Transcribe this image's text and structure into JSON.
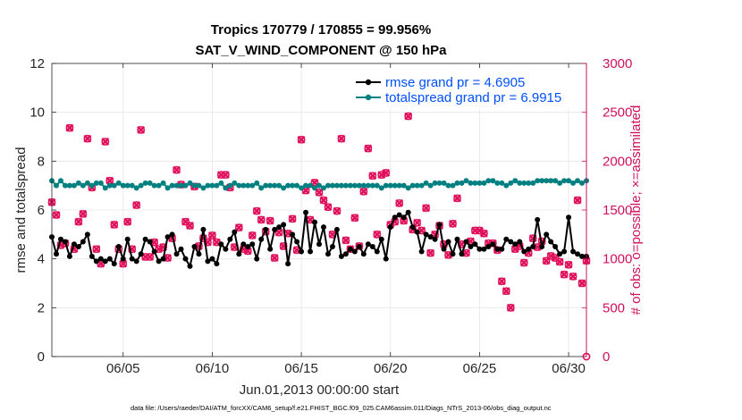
{
  "chart_data": {
    "type": "line",
    "title": "Tropics 170779 / 170855 = 99.956%",
    "subtitle": "SAT_V_WIND_COMPONENT @ 150 hPa",
    "xlabel": "Jun.01,2013 00:00:00 start",
    "ylabel_left": "rmse and totalspread",
    "ylabel_right": "# of obs: o=possible; ×=assimilated",
    "xlim": [
      1,
      31
    ],
    "ylim_left": [
      0,
      12
    ],
    "ylim_right": [
      0,
      3000
    ],
    "x_ticks": [
      5,
      10,
      15,
      20,
      25,
      30
    ],
    "x_tick_labels": [
      "06/05",
      "06/10",
      "06/15",
      "06/20",
      "06/25",
      "06/30"
    ],
    "y_ticks_left": [
      0,
      2,
      4,
      6,
      8,
      10,
      12
    ],
    "y_tick_labels_left": [
      "0",
      "2",
      "4",
      "6",
      "8",
      "10",
      "12"
    ],
    "y_ticks_right": [
      0,
      500,
      1000,
      1500,
      2000,
      2500,
      3000
    ],
    "y_tick_labels_right": [
      "0",
      "500",
      "1000",
      "1500",
      "2000",
      "2500",
      "3000"
    ],
    "grid": true,
    "legend_position": "top-right",
    "series": [
      {
        "name": "rmse grand pr = 4.6905",
        "axis": "left",
        "color": "#000000",
        "marker": "circle",
        "x": [
          1.0,
          1.25,
          1.5,
          1.75,
          2.0,
          2.25,
          2.5,
          2.75,
          3.0,
          3.25,
          3.5,
          3.75,
          4.0,
          4.25,
          4.5,
          4.75,
          5.0,
          5.25,
          5.5,
          5.75,
          6.0,
          6.25,
          6.5,
          6.75,
          7.0,
          7.25,
          7.5,
          7.75,
          8.0,
          8.25,
          8.5,
          8.75,
          9.0,
          9.25,
          9.5,
          9.75,
          10.0,
          10.25,
          10.5,
          10.75,
          11.0,
          11.25,
          11.5,
          11.75,
          12.0,
          12.25,
          12.5,
          12.75,
          13.0,
          13.25,
          13.5,
          13.75,
          14.0,
          14.25,
          14.5,
          14.75,
          15.0,
          15.25,
          15.5,
          15.75,
          16.0,
          16.25,
          16.5,
          16.75,
          17.0,
          17.25,
          17.5,
          17.75,
          18.0,
          18.25,
          18.5,
          18.75,
          19.0,
          19.25,
          19.5,
          19.75,
          20.0,
          20.25,
          20.5,
          20.75,
          21.0,
          21.25,
          21.5,
          21.75,
          22.0,
          22.25,
          22.5,
          22.75,
          23.0,
          23.25,
          23.5,
          23.75,
          24.0,
          24.25,
          24.5,
          24.75,
          25.0,
          25.25,
          25.5,
          25.75,
          26.0,
          26.25,
          26.5,
          26.75,
          27.0,
          27.25,
          27.5,
          27.75,
          28.0,
          28.25,
          28.5,
          28.75,
          29.0,
          29.25,
          29.5,
          29.75,
          30.0,
          30.25,
          30.5,
          30.75,
          31.0
        ],
        "values": [
          4.9,
          4.2,
          4.8,
          4.7,
          4.1,
          4.6,
          4.5,
          4.7,
          5.0,
          4.1,
          3.9,
          4.0,
          3.9,
          4.0,
          3.8,
          4.5,
          4.0,
          4.8,
          4.0,
          3.9,
          4.2,
          4.8,
          4.7,
          4.3,
          3.9,
          4.0,
          4.9,
          5.0,
          4.2,
          4.4,
          4.0,
          3.7,
          4.5,
          4.2,
          5.2,
          3.9,
          4.0,
          3.8,
          4.6,
          4.4,
          4.8,
          5.1,
          4.2,
          4.6,
          4.5,
          4.6,
          4.0,
          4.8,
          5.2,
          4.4,
          5.2,
          5.3,
          5.4,
          3.8,
          5.0,
          4.7,
          4.3,
          5.9,
          4.3,
          5.5,
          4.6,
          5.3,
          4.2,
          4.5,
          5.2,
          4.1,
          4.2,
          4.4,
          4.3,
          4.5,
          4.2,
          4.6,
          4.5,
          4.3,
          4.8,
          4.0,
          5.3,
          5.7,
          5.8,
          5.7,
          5.9,
          5.3,
          5.1,
          4.3,
          5.0,
          4.9,
          4.8,
          5.4,
          4.4,
          4.7,
          4.2,
          4.8,
          4.2,
          4.7,
          4.5,
          4.6,
          4.4,
          4.4,
          4.5,
          4.6,
          4.4,
          4.4,
          4.8,
          4.7,
          4.6,
          4.7,
          4.3,
          4.4,
          4.5,
          5.6,
          4.5,
          5.0,
          4.7,
          4.5,
          4.2,
          4.3,
          5.7,
          4.3,
          4.2,
          4.1,
          4.1
        ]
      },
      {
        "name": "totalspread grand pr = 6.9915",
        "axis": "left",
        "color": "#008080",
        "marker": "circle",
        "x": [
          1.0,
          1.25,
          1.5,
          1.75,
          2.0,
          2.25,
          2.5,
          2.75,
          3.0,
          3.25,
          3.5,
          3.75,
          4.0,
          4.25,
          4.5,
          4.75,
          5.0,
          5.25,
          5.5,
          5.75,
          6.0,
          6.25,
          6.5,
          6.75,
          7.0,
          7.25,
          7.5,
          7.75,
          8.0,
          8.25,
          8.5,
          8.75,
          9.0,
          9.25,
          9.5,
          9.75,
          10.0,
          10.25,
          10.5,
          10.75,
          11.0,
          11.25,
          11.5,
          11.75,
          12.0,
          12.25,
          12.5,
          12.75,
          13.0,
          13.25,
          13.5,
          13.75,
          14.0,
          14.25,
          14.5,
          14.75,
          15.0,
          15.25,
          15.5,
          15.75,
          16.0,
          16.25,
          16.5,
          16.75,
          17.0,
          17.25,
          17.5,
          17.75,
          18.0,
          18.25,
          18.5,
          18.75,
          19.0,
          19.25,
          19.5,
          19.75,
          20.0,
          20.25,
          20.5,
          20.75,
          21.0,
          21.25,
          21.5,
          21.75,
          22.0,
          22.25,
          22.5,
          22.75,
          23.0,
          23.25,
          23.5,
          23.75,
          24.0,
          24.25,
          24.5,
          24.75,
          25.0,
          25.25,
          25.5,
          25.75,
          26.0,
          26.25,
          26.5,
          26.75,
          27.0,
          27.25,
          27.5,
          27.75,
          28.0,
          28.25,
          28.5,
          28.75,
          29.0,
          29.25,
          29.5,
          29.75,
          30.0,
          30.25,
          30.5,
          30.75,
          31.0
        ],
        "values": [
          7.2,
          7.0,
          7.2,
          7.0,
          7.0,
          7.0,
          7.1,
          7.0,
          7.1,
          7.0,
          7.1,
          7.1,
          6.9,
          7.0,
          7.0,
          7.1,
          7.0,
          7.0,
          7.0,
          6.9,
          7.0,
          7.1,
          7.1,
          7.0,
          7.0,
          7.1,
          6.9,
          7.0,
          7.0,
          7.0,
          7.0,
          7.1,
          7.0,
          7.0,
          6.9,
          7.0,
          7.0,
          7.0,
          7.1,
          6.9,
          7.0,
          7.1,
          7.0,
          7.0,
          7.0,
          7.0,
          7.1,
          6.9,
          7.0,
          7.0,
          7.0,
          7.0,
          6.9,
          7.0,
          7.0,
          7.0,
          6.9,
          7.0,
          7.0,
          6.9,
          7.0,
          6.9,
          7.0,
          7.0,
          7.0,
          7.0,
          7.0,
          7.0,
          7.0,
          7.0,
          7.0,
          7.0,
          7.0,
          7.0,
          6.9,
          7.0,
          7.0,
          7.0,
          7.0,
          7.0,
          6.9,
          7.0,
          7.0,
          7.0,
          7.1,
          7.0,
          7.1,
          7.1,
          7.1,
          7.0,
          7.0,
          7.1,
          7.1,
          7.2,
          7.1,
          7.1,
          7.1,
          7.1,
          7.2,
          7.2,
          7.1,
          7.1,
          7.0,
          7.1,
          7.2,
          7.1,
          7.1,
          7.1,
          7.1,
          7.2,
          7.2,
          7.2,
          7.2,
          7.2,
          7.1,
          7.2,
          7.2,
          7.1,
          7.2,
          7.1,
          7.2
        ]
      },
      {
        "name": "obs possible / assimilated",
        "axis": "right",
        "color": "#e0105c",
        "marker": "x",
        "x": [
          1.0,
          1.25,
          1.5,
          1.75,
          2.0,
          2.25,
          2.5,
          2.75,
          3.0,
          3.25,
          3.5,
          3.75,
          4.0,
          4.25,
          4.5,
          4.75,
          5.0,
          5.25,
          5.5,
          5.75,
          6.0,
          6.25,
          6.5,
          6.75,
          7.0,
          7.25,
          7.5,
          7.75,
          8.0,
          8.25,
          8.5,
          8.75,
          9.0,
          9.25,
          9.5,
          9.75,
          10.0,
          10.25,
          10.5,
          10.75,
          11.0,
          11.25,
          11.5,
          11.75,
          12.0,
          12.25,
          12.5,
          12.75,
          13.0,
          13.25,
          13.5,
          13.75,
          14.0,
          14.25,
          14.5,
          14.75,
          15.0,
          15.25,
          15.5,
          15.75,
          16.0,
          16.25,
          16.5,
          16.75,
          17.0,
          17.25,
          17.5,
          17.75,
          18.0,
          18.25,
          18.5,
          18.75,
          19.0,
          19.25,
          19.5,
          19.75,
          20.0,
          20.25,
          20.5,
          20.75,
          21.0,
          21.25,
          21.5,
          21.75,
          22.0,
          22.25,
          22.5,
          22.75,
          23.0,
          23.25,
          23.5,
          23.75,
          24.0,
          24.25,
          24.5,
          24.75,
          25.0,
          25.25,
          25.5,
          25.75,
          26.0,
          26.25,
          26.5,
          26.75,
          27.0,
          27.25,
          27.5,
          27.75,
          28.0,
          28.25,
          28.5,
          28.75,
          29.0,
          29.25,
          29.5,
          29.75,
          30.0,
          30.25,
          30.5,
          30.75,
          31.0
        ],
        "values": [
          1580,
          1450,
          1140,
          1160,
          2340,
          1100,
          1380,
          1460,
          2230,
          1730,
          1100,
          950,
          2200,
          1800,
          1350,
          1100,
          950,
          1380,
          1100,
          1550,
          2320,
          1020,
          1020,
          1170,
          1100,
          1120,
          1010,
          1210,
          1910,
          1760,
          1380,
          1340,
          1740,
          1130,
          1210,
          1170,
          1240,
          1170,
          1860,
          1860,
          1730,
          1120,
          1320,
          1100,
          1080,
          1240,
          1490,
          1400,
          1280,
          1390,
          1010,
          1270,
          1130,
          1260,
          1410,
          1090,
          2220,
          1700,
          1400,
          1780,
          1680,
          1600,
          1530,
          1250,
          1490,
          2230,
          1190,
          1100,
          1420,
          1130,
          1690,
          2130,
          1850,
          1250,
          1860,
          1880,
          1350,
          1380,
          1570,
          1390,
          2460,
          1300,
          1370,
          1290,
          1520,
          1060,
          1250,
          1340,
          1150,
          1040,
          1360,
          1620,
          1150,
          1060,
          1180,
          1290,
          1290,
          1260,
          1160,
          1160,
          1090,
          770,
          670,
          500,
          1100,
          1130,
          960,
          1060,
          1210,
          1120,
          1180,
          980,
          1030,
          1010,
          970,
          840,
          940,
          820,
          1600,
          750,
          980
        ]
      }
    ]
  },
  "footnote": "data file: /Users/raeder/DAI/ATM_forcXX/CAM6_setup/f.e21.FHIST_BGC.f09_025.CAM6assim.011/Diags_NTrS_2013-06/obs_diag_output.nc",
  "colors": {
    "axis": "#262626",
    "right_axis": "#d0105c",
    "legend_text": "#0050ff",
    "grid": "#e6e6e6"
  }
}
